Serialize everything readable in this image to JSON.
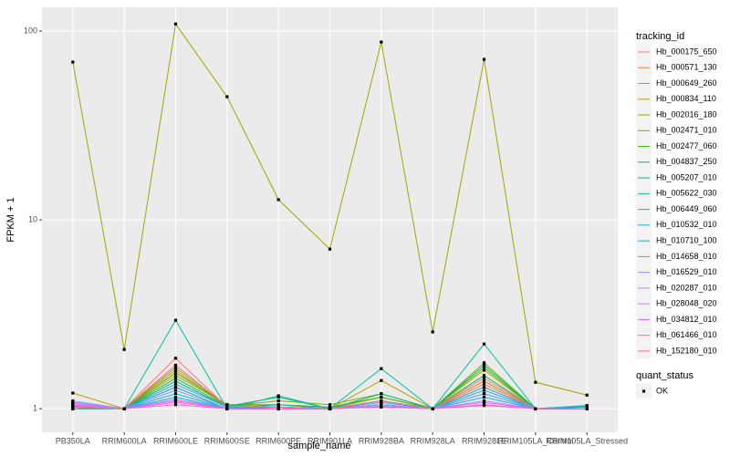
{
  "chart_data": {
    "type": "line",
    "x_label": "sample_name",
    "y_label": "FPKM + 1",
    "y_scale": "log",
    "grid": true,
    "legend_title": "tracking_id",
    "legend_position": "right",
    "point_legend_title": "quant_status",
    "point_legend_label": "OK",
    "point_color": "#000000",
    "categories": [
      "PB350LA",
      "RRIM600LA",
      "RRIM600LE",
      "RRIM600SE",
      "RRIM600PE",
      "RRIM901LA",
      "RRIM928BA",
      "RRIM928LA",
      "RRIM928LE",
      "RRIM105LA_Control",
      "RRIM105LA_Stressed"
    ],
    "ylim": [
      0.75,
      133.6
    ],
    "yticks": [
      1,
      10,
      100
    ],
    "series": [
      {
        "name": "Hb_000175_650",
        "color": "#F8766D",
        "values": [
          1.02,
          1,
          1.85,
          1.02,
          1,
          1,
          1.05,
          1,
          1.35,
          1,
          1
        ]
      },
      {
        "name": "Hb_000571_130",
        "color": "#EA8331",
        "values": [
          1.05,
          1,
          1.3,
          1,
          1,
          1,
          1.1,
          1,
          1.3,
          1,
          1
        ]
      },
      {
        "name": "Hb_000649_260",
        "color": "#D89000",
        "values": [
          1.03,
          1,
          1.6,
          1.02,
          1.05,
          1,
          1.15,
          1,
          1.4,
          1,
          1
        ]
      },
      {
        "name": "Hb_000834_110",
        "color": "#C09B00",
        "values": [
          1.21,
          1,
          1.5,
          1.05,
          1.02,
          1,
          1.41,
          1,
          1.6,
          1,
          1
        ]
      },
      {
        "name": "Hb_002016_180",
        "color": "#A3A500",
        "values": [
          68.5,
          2.06,
          109,
          44.9,
          12.8,
          7.0,
          87.5,
          2.55,
          70.8,
          1.38,
          1.18
        ]
      },
      {
        "name": "Hb_002471_010",
        "color": "#7CAE00",
        "values": [
          1.02,
          1,
          1.65,
          1.03,
          1.1,
          1.05,
          1.2,
          1,
          1.75,
          1,
          1
        ]
      },
      {
        "name": "Hb_002477_060",
        "color": "#39B600",
        "values": [
          1,
          1,
          1.55,
          1.05,
          1.05,
          1.02,
          1.15,
          1,
          1.65,
          1,
          1
        ]
      },
      {
        "name": "Hb_004837_250",
        "color": "#00BB4E",
        "values": [
          1,
          1,
          1.4,
          1.02,
          1.02,
          1,
          1.1,
          1,
          1.5,
          1,
          1
        ]
      },
      {
        "name": "Hb_005207_010",
        "color": "#00BF7D",
        "values": [
          1.02,
          1,
          1.45,
          1.03,
          1.15,
          1,
          1.2,
          1,
          1.7,
          1,
          1
        ]
      },
      {
        "name": "Hb_005622_030",
        "color": "#00C1A3",
        "values": [
          1,
          1,
          2.94,
          1,
          1.17,
          1,
          1.63,
          1,
          2.2,
          1,
          1.02
        ]
      },
      {
        "name": "Hb_006449_060",
        "color": "#00BFC4",
        "values": [
          1.05,
          1,
          1.2,
          1,
          1.05,
          1,
          1.05,
          1,
          1.25,
          1,
          1.04
        ]
      },
      {
        "name": "Hb_010532_010",
        "color": "#00BAE0",
        "values": [
          1.02,
          1,
          1.3,
          1,
          1.02,
          1,
          1.1,
          1,
          1.2,
          1,
          1
        ]
      },
      {
        "name": "Hb_010710_100",
        "color": "#00B0F6",
        "values": [
          1.03,
          1,
          1.15,
          1,
          1,
          1,
          1.05,
          1,
          1.15,
          1,
          1.03
        ]
      },
      {
        "name": "Hb_014658_010",
        "color": "#35A2FF",
        "values": [
          1.08,
          1,
          1.35,
          1.02,
          1.02,
          1,
          1.08,
          1,
          1.3,
          1,
          1
        ]
      },
      {
        "name": "Hb_016529_010",
        "color": "#9590FF",
        "values": [
          1.1,
          1,
          1.25,
          1,
          1,
          1,
          1.05,
          1,
          1.2,
          1,
          1
        ]
      },
      {
        "name": "Hb_020287_010",
        "color": "#C77CFF",
        "values": [
          1.07,
          1,
          1.12,
          1,
          1,
          1,
          1.03,
          1,
          1.1,
          1,
          1
        ]
      },
      {
        "name": "Hb_028048_020",
        "color": "#E76BF3",
        "values": [
          1.05,
          1,
          1.08,
          1,
          1,
          1,
          1.03,
          1,
          1.08,
          1,
          1
        ]
      },
      {
        "name": "Hb_034812_010",
        "color": "#FA62DB",
        "values": [
          1.04,
          1,
          1.1,
          1,
          1,
          1,
          1.02,
          1,
          1.05,
          1,
          1
        ]
      },
      {
        "name": "Hb_061466_010",
        "color": "#FF62BC",
        "values": [
          1.03,
          1,
          1.05,
          1,
          1,
          1,
          1.02,
          1,
          1.04,
          1,
          1
        ]
      },
      {
        "name": "Hb_152180_010",
        "color": "#FF6C91",
        "values": [
          1.02,
          1,
          1.7,
          1.03,
          1.02,
          1,
          1.1,
          1,
          1.45,
          1,
          1
        ]
      }
    ]
  }
}
